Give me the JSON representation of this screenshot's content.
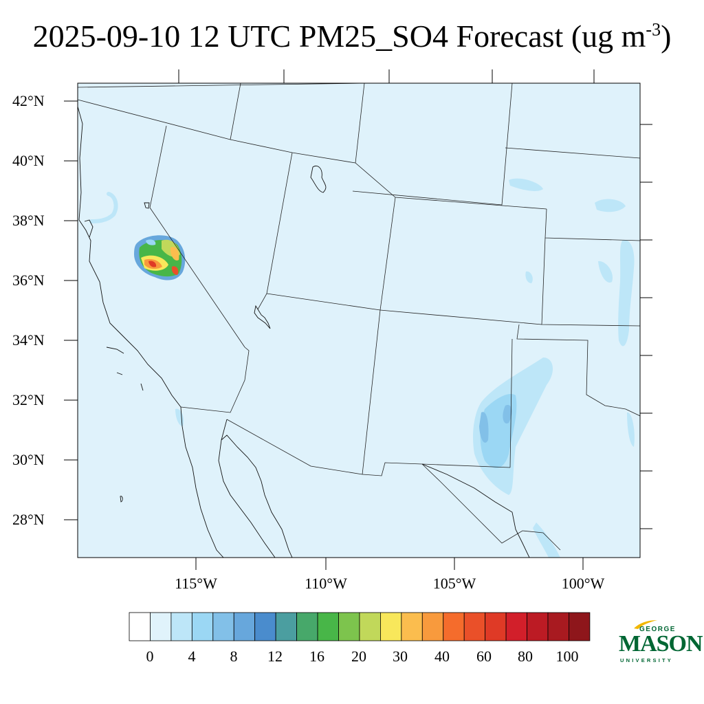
{
  "title": {
    "main": "2025-09-10 12 UTC PM25_SO4 Forecast (ug m",
    "sup": "-3",
    "close": ")"
  },
  "map": {
    "lat_labels": [
      "42°N",
      "40°N",
      "38°N",
      "36°N",
      "34°N",
      "32°N",
      "30°N",
      "28°N"
    ],
    "lon_labels": [
      "115°W",
      "110°W",
      "105°W",
      "100°W"
    ],
    "background_color": "#dff2fb"
  },
  "colorbar": {
    "colors": [
      "#ffffff",
      "#e0f3fb",
      "#bde6f8",
      "#9bd7f4",
      "#82c0e8",
      "#67a7dc",
      "#4a8ccd",
      "#4b9ea0",
      "#47a86a",
      "#48b648",
      "#7dc44d",
      "#c1d85a",
      "#f8e75b",
      "#fbbd4e",
      "#f89a3d",
      "#f56c2c",
      "#ea5029",
      "#df3a26",
      "#d21f2a",
      "#bc1b24",
      "#a81a20",
      "#8e161b"
    ],
    "labels": [
      "0",
      "4",
      "8",
      "12",
      "16",
      "20",
      "30",
      "40",
      "60",
      "80",
      "100"
    ]
  },
  "logo": {
    "george": "GEORGE",
    "mason": "MASON",
    "university": "UNIVERSITY",
    "color": "#006633",
    "accent": "#f2b700"
  }
}
